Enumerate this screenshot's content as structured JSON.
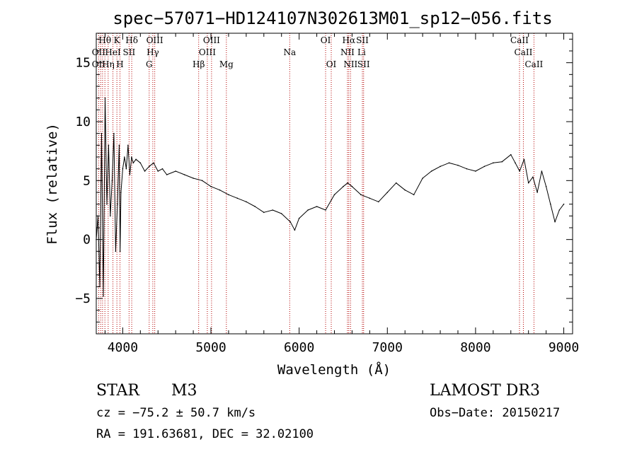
{
  "chart_data": {
    "type": "line",
    "title": "spec−57071−HD124107N302613M01_sp12−056.fits",
    "xlabel": "Wavelength (Å)",
    "ylabel": "Flux (relative)",
    "xlim": [
      3700,
      9100
    ],
    "ylim": [
      -8,
      17.5
    ],
    "x_ticks": [
      4000,
      5000,
      6000,
      7000,
      8000,
      9000
    ],
    "y_ticks": [
      -5,
      0,
      5,
      10,
      15
    ],
    "y_tick_labels": [
      "−5",
      "0",
      "5",
      "10",
      "15"
    ],
    "line_color": "#000000",
    "marker_color": "#b30000",
    "grid": false,
    "series": [
      {
        "x": [
          3700,
          3720,
          3740,
          3760,
          3780,
          3800,
          3820,
          3840,
          3860,
          3880,
          3900,
          3920,
          3940,
          3960,
          3970,
          3980,
          4000,
          4020,
          4040,
          4060,
          4080,
          4100,
          4120,
          4150,
          4200,
          4250,
          4300,
          4350,
          4400,
          4450,
          4500,
          4600,
          4700,
          4800,
          4900,
          5000,
          5100,
          5200,
          5300,
          5400,
          5500,
          5600,
          5700,
          5800,
          5900,
          5950,
          6000,
          6100,
          6200,
          6300,
          6400,
          6500,
          6550,
          6600,
          6700,
          6800,
          6900,
          7000,
          7100,
          7200,
          7300,
          7400,
          7500,
          7600,
          7700,
          7800,
          7900,
          8000,
          8100,
          8200,
          8300,
          8400,
          8450,
          8500,
          8550,
          8600,
          8650,
          8700,
          8750,
          8800,
          8850,
          8900,
          8950,
          9000
        ],
        "y": [
          0,
          2,
          -4,
          9,
          -4.8,
          12,
          3,
          8,
          2,
          5,
          9,
          -1,
          3,
          8,
          -1,
          4,
          6,
          7,
          6,
          8,
          5.5,
          7,
          6.5,
          6.8,
          6.5,
          5.8,
          6.2,
          6.5,
          5.8,
          6,
          5.5,
          5.8,
          5.5,
          5.2,
          5,
          4.5,
          4.2,
          3.8,
          3.5,
          3.2,
          2.8,
          2.3,
          2.5,
          2.2,
          1.5,
          0.8,
          1.8,
          2.5,
          2.8,
          2.5,
          3.8,
          4.5,
          4.8,
          4.5,
          3.8,
          3.5,
          3.2,
          4,
          4.8,
          4.2,
          3.8,
          5.2,
          5.8,
          6.2,
          6.5,
          6.3,
          6,
          5.8,
          6.2,
          6.5,
          6.6,
          7.2,
          6.5,
          5.8,
          6.8,
          4.8,
          5.3,
          4,
          5.8,
          4.5,
          3,
          1.5,
          2.5,
          3
        ]
      }
    ],
    "marker_lines": [
      3727,
      3750,
      3771,
      3798,
      3835,
      3889,
      3934,
      3969,
      4072,
      4102,
      4300,
      4341,
      4363,
      4861,
      4959,
      5007,
      5175,
      5893,
      6300,
      6364,
      6548,
      6563,
      6583,
      6717,
      6731,
      8498,
      8542,
      8662
    ],
    "marker_labels": [
      {
        "text": "Hθ",
        "x": 3798,
        "row": 1
      },
      {
        "text": "K",
        "x": 3934,
        "row": 1
      },
      {
        "text": "Hδ",
        "x": 4102,
        "row": 1
      },
      {
        "text": "OIII",
        "x": 4363,
        "row": 1
      },
      {
        "text": "OIII",
        "x": 5007,
        "row": 1
      },
      {
        "text": "OI",
        "x": 6300,
        "row": 1
      },
      {
        "text": "Hα",
        "x": 6563,
        "row": 1
      },
      {
        "text": "SII",
        "x": 6717,
        "row": 1
      },
      {
        "text": "CaII",
        "x": 8498,
        "row": 1
      },
      {
        "text": "OII",
        "x": 3727,
        "row": 2
      },
      {
        "text": "HeI",
        "x": 3889,
        "row": 2
      },
      {
        "text": "SII",
        "x": 4072,
        "row": 2
      },
      {
        "text": "Hγ",
        "x": 4341,
        "row": 2
      },
      {
        "text": "OIII",
        "x": 4959,
        "row": 2
      },
      {
        "text": "Na",
        "x": 5893,
        "row": 2
      },
      {
        "text": "NII",
        "x": 6548,
        "row": 2
      },
      {
        "text": "Li",
        "x": 6708,
        "row": 2
      },
      {
        "text": "CaII",
        "x": 8542,
        "row": 2
      },
      {
        "text": "OII",
        "x": 3727,
        "row": 3
      },
      {
        "text": "Hη",
        "x": 3835,
        "row": 3
      },
      {
        "text": "H",
        "x": 3969,
        "row": 3
      },
      {
        "text": "G",
        "x": 4300,
        "row": 3
      },
      {
        "text": "Hβ",
        "x": 4861,
        "row": 3
      },
      {
        "text": "Mg",
        "x": 5175,
        "row": 3
      },
      {
        "text": "OI",
        "x": 6364,
        "row": 3
      },
      {
        "text": "NII",
        "x": 6583,
        "row": 3
      },
      {
        "text": "SII",
        "x": 6731,
        "row": 3
      },
      {
        "text": "CaII",
        "x": 8662,
        "row": 3
      }
    ]
  },
  "info": {
    "class": "STAR",
    "subclass": "M3",
    "survey": "LAMOST DR3",
    "cz": "cz = −75.2 ± 50.7 km/s",
    "obs_date": "Obs−Date: 20150217",
    "coords": "RA = 191.63681, DEC =  32.02100"
  }
}
